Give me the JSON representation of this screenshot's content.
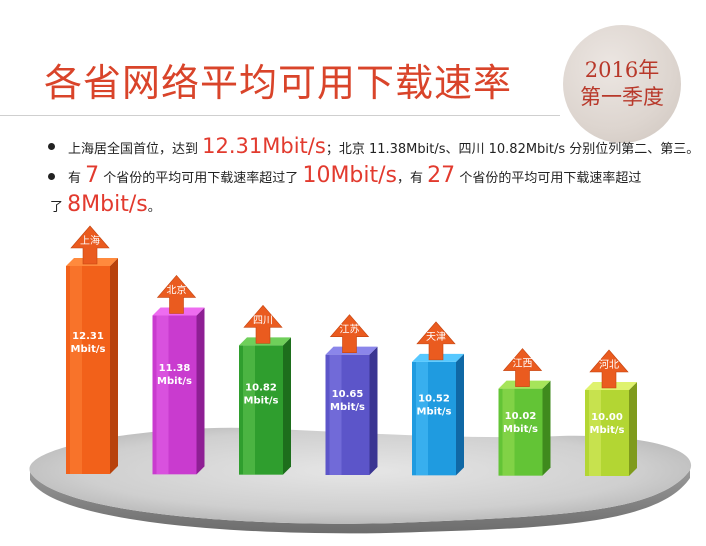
{
  "title": "各省网络平均可用下载速率",
  "badge": {
    "line1": "2016年",
    "line2": "第一季度"
  },
  "colors": {
    "accent": "#d9442a",
    "highlight": "#e23a2e",
    "arrow": "#ea5b1f"
  },
  "bullets": {
    "b1": {
      "pre": "上海居全国首位，达到",
      "hl": "12.31Mbit/s",
      "post": "；北京 11.38Mbit/s、四川 10.82Mbit/s 分别位列第二、第三。"
    },
    "b2": {
      "t1": "有",
      "n1": "7",
      "t2": "个省份的平均可用下载速率超过了",
      "n2": "10Mbit/s",
      "t3": "，有",
      "n3": "27",
      "t4": "个省份的平均可用下载速率超过",
      "t5": "了",
      "n4": "8Mbit/s",
      "t6": "。"
    }
  },
  "chart_data": {
    "type": "bar",
    "title": "",
    "categories": [
      "上海",
      "北京",
      "四川",
      "江苏",
      "天津",
      "江西",
      "河北"
    ],
    "values": [
      12.31,
      11.38,
      10.82,
      10.65,
      10.52,
      10.02,
      10.0
    ],
    "value_labels": [
      "12.31\nMbit/s",
      "11.38\nMbit/s",
      "10.82\nMbit/s",
      "10.65\nMbit/s",
      "10.52\nMbit/s",
      "10.02\nMbit/s",
      "10.00\nMbit/s"
    ],
    "unit": "Mbit/s",
    "bar_colors": [
      {
        "light": "#ff8a3d",
        "main": "#f2611a",
        "dark": "#b8420c"
      },
      {
        "light": "#ee6cf0",
        "main": "#c93bcf",
        "dark": "#8e1f94"
      },
      {
        "light": "#6fcf5a",
        "main": "#2f9e2e",
        "dark": "#1d6e1c"
      },
      {
        "light": "#8b86ea",
        "main": "#5c55c9",
        "dark": "#3a3592"
      },
      {
        "light": "#56c8ff",
        "main": "#1f9be0",
        "dark": "#1068a5"
      },
      {
        "light": "#a6e45a",
        "main": "#63c436",
        "dark": "#3f8a1d"
      },
      {
        "light": "#dff26e",
        "main": "#b3d633",
        "dark": "#7f9b1c"
      }
    ],
    "grid": false,
    "legend": "none"
  }
}
